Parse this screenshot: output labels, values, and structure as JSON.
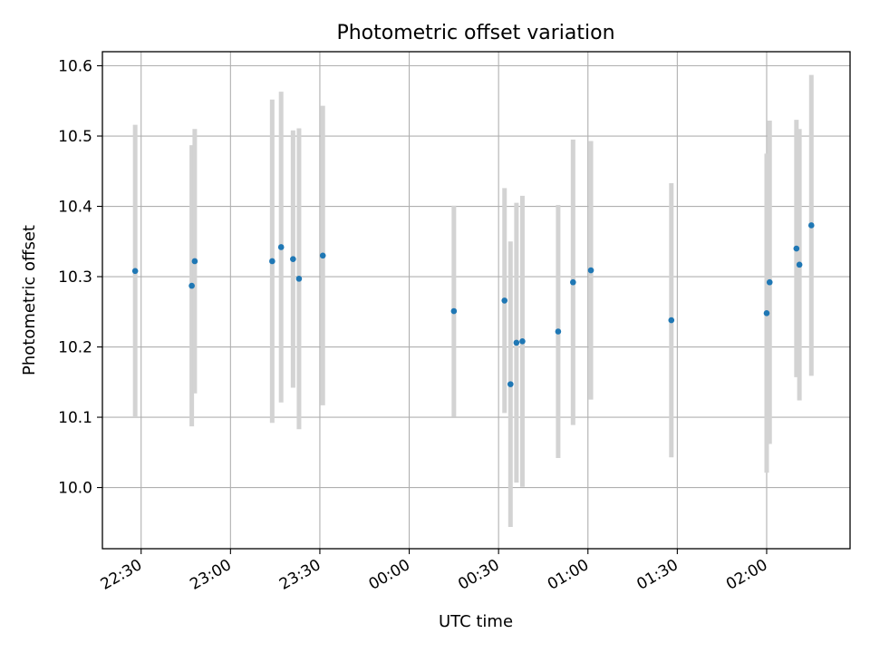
{
  "chart_data": {
    "type": "scatter",
    "title": "Photometric offset variation",
    "xlabel": "UTC time",
    "ylabel": "Photometric offset",
    "x_ticks": [
      "22:30",
      "23:00",
      "23:30",
      "00:00",
      "00:30",
      "01:00",
      "01:30",
      "02:00"
    ],
    "y_ticks": [
      "10.0",
      "10.1",
      "10.2",
      "10.3",
      "10.4",
      "10.5",
      "10.6"
    ],
    "xlim": [
      "22:17",
      "02:28"
    ],
    "ylim": [
      9.913,
      10.62
    ],
    "grid": true,
    "legend": "none",
    "colors": {
      "marker": "#1f77b4",
      "errorbar": "#d3d3d3",
      "grid": "#b0b0b0"
    },
    "series": [
      {
        "points": [
          {
            "t": "22:28",
            "y": 10.308,
            "err": 0.208
          },
          {
            "t": "22:47",
            "y": 10.287,
            "err": 0.2
          },
          {
            "t": "22:48",
            "y": 10.322,
            "err": 0.188
          },
          {
            "t": "23:14",
            "y": 10.322,
            "err": 0.23
          },
          {
            "t": "23:17",
            "y": 10.342,
            "err": 0.221
          },
          {
            "t": "23:21",
            "y": 10.325,
            "err": 0.183
          },
          {
            "t": "23:23",
            "y": 10.297,
            "err": 0.214
          },
          {
            "t": "23:31",
            "y": 10.33,
            "err": 0.213
          },
          {
            "t": "00:15",
            "y": 10.251,
            "err": 0.15
          },
          {
            "t": "00:32",
            "y": 10.266,
            "err": 0.16
          },
          {
            "t": "00:34",
            "y": 10.147,
            "err": 0.203
          },
          {
            "t": "00:36",
            "y": 10.206,
            "err": 0.199
          },
          {
            "t": "00:38",
            "y": 10.208,
            "err": 0.207
          },
          {
            "t": "00:50",
            "y": 10.222,
            "err": 0.18
          },
          {
            "t": "00:55",
            "y": 10.292,
            "err": 0.203
          },
          {
            "t": "01:01",
            "y": 10.309,
            "err": 0.184
          },
          {
            "t": "01:28",
            "y": 10.238,
            "err": 0.195
          },
          {
            "t": "02:00",
            "y": 10.248,
            "err": 0.227
          },
          {
            "t": "02:01",
            "y": 10.292,
            "err": 0.23
          },
          {
            "t": "02:10",
            "y": 10.34,
            "err": 0.183
          },
          {
            "t": "02:11",
            "y": 10.317,
            "err": 0.193
          },
          {
            "t": "02:15",
            "y": 10.373,
            "err": 0.214
          }
        ]
      }
    ]
  }
}
